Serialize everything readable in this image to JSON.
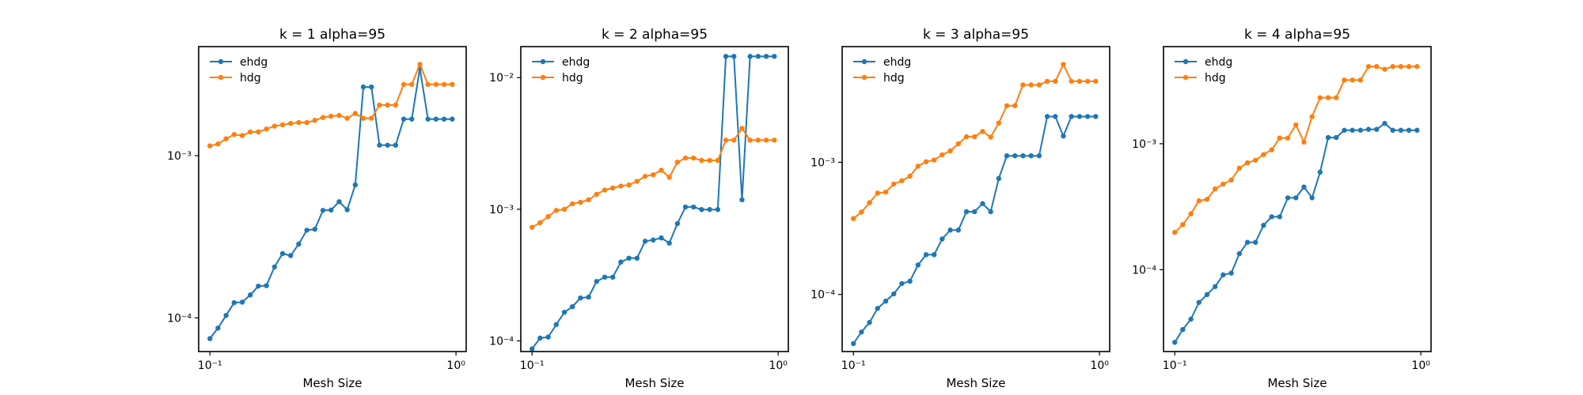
{
  "figure": {
    "background": "#ffffff",
    "series_colors": [
      "#1f77b4",
      "#ff7f0e"
    ]
  },
  "chart_data": [
    {
      "type": "line",
      "title": "k = 1 alpha=95",
      "xlabel": "Mesh Size",
      "ylabel": "",
      "xscale": "log",
      "yscale": "log",
      "xlim": [
        0.09,
        1.1
      ],
      "ylim": [
        6.2e-05,
        0.0047
      ],
      "grid": false,
      "legend": "upper left",
      "x_ticks": [
        {
          "value": 0.1,
          "label": "10⁻¹"
        },
        {
          "value": 1,
          "label": "10⁰"
        }
      ],
      "y_ticks": [
        {
          "value": 0.0001,
          "label": "10⁻⁴"
        },
        {
          "value": 0.001,
          "label": "10⁻³"
        }
      ],
      "x": [
        0.1,
        0.1078,
        0.1163,
        0.1254,
        0.1353,
        0.1459,
        0.1573,
        0.1697,
        0.183,
        0.1974,
        0.2128,
        0.2295,
        0.2476,
        0.267,
        0.288,
        0.3106,
        0.335,
        0.3613,
        0.3896,
        0.4202,
        0.4532,
        0.4887,
        0.5271,
        0.5685,
        0.6131,
        0.6612,
        0.7131,
        0.7691,
        0.8295,
        0.8946,
        0.9649
      ],
      "series": [
        {
          "name": "ehdg",
          "values": [
            7.45e-05,
            8.65e-05,
            0.0001035,
            0.000124,
            0.000125,
            0.0001385,
            0.000157,
            0.000158,
            0.000206,
            0.000249,
            0.000242,
            0.000285,
            0.000347,
            0.000352,
            0.00046,
            0.000462,
            0.00052,
            0.000464,
            0.00066,
            0.00265,
            0.00265,
            0.00116,
            0.00116,
            0.00116,
            0.00168,
            0.00168,
            0.00345,
            0.00168,
            0.00168,
            0.00168,
            0.00168
          ]
        },
        {
          "name": "hdg",
          "values": [
            0.00115,
            0.00118,
            0.00127,
            0.00135,
            0.00133,
            0.0014,
            0.0014,
            0.00146,
            0.00152,
            0.00155,
            0.00158,
            0.0016,
            0.0016,
            0.00165,
            0.00172,
            0.00175,
            0.00177,
            0.0017,
            0.00182,
            0.0017,
            0.0017,
            0.00205,
            0.00205,
            0.00205,
            0.00275,
            0.00275,
            0.00365,
            0.00275,
            0.00275,
            0.00275,
            0.00275
          ]
        }
      ]
    },
    {
      "type": "line",
      "title": "k = 2 alpha=95",
      "xlabel": "Mesh Size",
      "ylabel": "",
      "xscale": "log",
      "yscale": "log",
      "xlim": [
        0.09,
        1.1
      ],
      "ylim": [
        8.3e-05,
        0.0172
      ],
      "grid": false,
      "legend": "upper left",
      "x_ticks": [
        {
          "value": 0.1,
          "label": "10⁻¹"
        },
        {
          "value": 1,
          "label": "10⁰"
        }
      ],
      "y_ticks": [
        {
          "value": 0.0001,
          "label": "10⁻⁴"
        },
        {
          "value": 0.001,
          "label": "10⁻³"
        },
        {
          "value": 0.01,
          "label": "10⁻²"
        }
      ],
      "x": [
        0.1,
        0.1078,
        0.1163,
        0.1254,
        0.1353,
        0.1459,
        0.1573,
        0.1697,
        0.183,
        0.1974,
        0.2128,
        0.2295,
        0.2476,
        0.267,
        0.288,
        0.3106,
        0.335,
        0.3613,
        0.3896,
        0.4202,
        0.4532,
        0.4887,
        0.5271,
        0.5685,
        0.6131,
        0.6612,
        0.7131,
        0.7691,
        0.8295,
        0.8946,
        0.9649
      ],
      "series": [
        {
          "name": "ehdg",
          "values": [
            8.7e-05,
            0.000105,
            0.000107,
            0.000133,
            0.000165,
            0.000182,
            0.000212,
            0.000215,
            0.000283,
            0.000305,
            0.000305,
            0.000397,
            0.000425,
            0.000425,
            0.000572,
            0.000584,
            0.000606,
            0.000553,
            0.000778,
            0.00104,
            0.00104,
            0.000995,
            0.000995,
            0.000995,
            0.0145,
            0.0145,
            0.00118,
            0.0145,
            0.0145,
            0.0145,
            0.0145
          ]
        },
        {
          "name": "hdg",
          "values": [
            0.00073,
            0.00079,
            0.00088,
            0.00098,
            0.001,
            0.0011,
            0.00113,
            0.00118,
            0.0013,
            0.0014,
            0.00145,
            0.0015,
            0.00153,
            0.00163,
            0.00178,
            0.00183,
            0.00198,
            0.00175,
            0.00228,
            0.00245,
            0.00245,
            0.00235,
            0.00235,
            0.00235,
            0.00335,
            0.00335,
            0.00412,
            0.00335,
            0.00335,
            0.00335,
            0.00335
          ]
        }
      ]
    },
    {
      "type": "line",
      "title": "k = 3 alpha=95",
      "xlabel": "Mesh Size",
      "ylabel": "",
      "xscale": "log",
      "yscale": "log",
      "xlim": [
        0.09,
        1.1
      ],
      "ylim": [
        3.7e-05,
        0.0075
      ],
      "grid": false,
      "legend": "upper left",
      "x_ticks": [
        {
          "value": 0.1,
          "label": "10⁻¹"
        },
        {
          "value": 1,
          "label": "10⁰"
        }
      ],
      "y_ticks": [
        {
          "value": 0.0001,
          "label": "10⁻⁴"
        },
        {
          "value": 0.001,
          "label": "10⁻³"
        }
      ],
      "x": [
        0.1,
        0.1078,
        0.1163,
        0.1254,
        0.1353,
        0.1459,
        0.1573,
        0.1697,
        0.183,
        0.1974,
        0.2128,
        0.2295,
        0.2476,
        0.267,
        0.288,
        0.3106,
        0.335,
        0.3613,
        0.3896,
        0.4202,
        0.4532,
        0.4887,
        0.5271,
        0.5685,
        0.6131,
        0.6612,
        0.7131,
        0.7691,
        0.8295,
        0.8946,
        0.9649
      ],
      "series": [
        {
          "name": "ehdg",
          "values": [
            4.25e-05,
            5.2e-05,
            6.15e-05,
            7.85e-05,
            8.9e-05,
            0.000101,
            0.000121,
            0.000126,
            0.000167,
            0.0002,
            0.0002,
            0.000263,
            0.000307,
            0.000307,
            0.000423,
            0.000423,
            0.000487,
            0.000423,
            0.000754,
            0.00112,
            0.00112,
            0.00112,
            0.00112,
            0.00112,
            0.00222,
            0.00222,
            0.00158,
            0.00222,
            0.00222,
            0.00222,
            0.00222
          ]
        },
        {
          "name": "hdg",
          "values": [
            0.000375,
            0.00042,
            0.000495,
            0.000585,
            0.000595,
            0.000685,
            0.000725,
            0.000785,
            0.000935,
            0.00101,
            0.00104,
            0.00114,
            0.00122,
            0.00138,
            0.00156,
            0.00156,
            0.00171,
            0.00155,
            0.00198,
            0.00268,
            0.00268,
            0.00385,
            0.00385,
            0.00385,
            0.0041,
            0.0041,
            0.0055,
            0.0041,
            0.0041,
            0.0041,
            0.0041
          ]
        }
      ]
    },
    {
      "type": "line",
      "title": "k = 4 alpha=95",
      "xlabel": "Mesh Size",
      "ylabel": "",
      "xscale": "log",
      "yscale": "log",
      "xlim": [
        0.09,
        1.1
      ],
      "ylim": [
        2.24e-05,
        0.0059
      ],
      "grid": false,
      "legend": "upper left",
      "x_ticks": [
        {
          "value": 0.1,
          "label": "10⁻¹"
        },
        {
          "value": 1,
          "label": "10⁰"
        }
      ],
      "y_ticks": [
        {
          "value": 0.0001,
          "label": "10⁻⁴"
        },
        {
          "value": 0.001,
          "label": "10⁻³"
        }
      ],
      "x": [
        0.1,
        0.1078,
        0.1163,
        0.1254,
        0.1353,
        0.1459,
        0.1573,
        0.1697,
        0.183,
        0.1974,
        0.2128,
        0.2295,
        0.2476,
        0.267,
        0.288,
        0.3106,
        0.335,
        0.3613,
        0.3896,
        0.4202,
        0.4532,
        0.4887,
        0.5271,
        0.5685,
        0.6131,
        0.6612,
        0.7131,
        0.7691,
        0.8295,
        0.8946,
        0.9649
      ],
      "series": [
        {
          "name": "ehdg",
          "values": [
            2.65e-05,
            3.35e-05,
            4.05e-05,
            5.5e-05,
            6.35e-05,
            7.35e-05,
            9.1e-05,
            9.4e-05,
            0.000134,
            0.000165,
            0.000165,
            0.000225,
            0.000263,
            0.000263,
            0.000372,
            0.000372,
            0.000453,
            0.000372,
            0.000595,
            0.00112,
            0.00112,
            0.00128,
            0.00128,
            0.00128,
            0.0013,
            0.0013,
            0.00145,
            0.00128,
            0.00128,
            0.00128,
            0.00128
          ]
        },
        {
          "name": "hdg",
          "values": [
            0.000198,
            0.000228,
            0.000278,
            0.000352,
            0.000362,
            0.000438,
            0.000478,
            0.000515,
            0.00064,
            0.000705,
            0.00074,
            0.00082,
            0.000895,
            0.00111,
            0.00111,
            0.00141,
            0.00103,
            0.00164,
            0.00232,
            0.00232,
            0.00232,
            0.0032,
            0.0032,
            0.0032,
            0.0041,
            0.0041,
            0.0039,
            0.0041,
            0.0041,
            0.0041,
            0.0041
          ]
        }
      ]
    }
  ]
}
